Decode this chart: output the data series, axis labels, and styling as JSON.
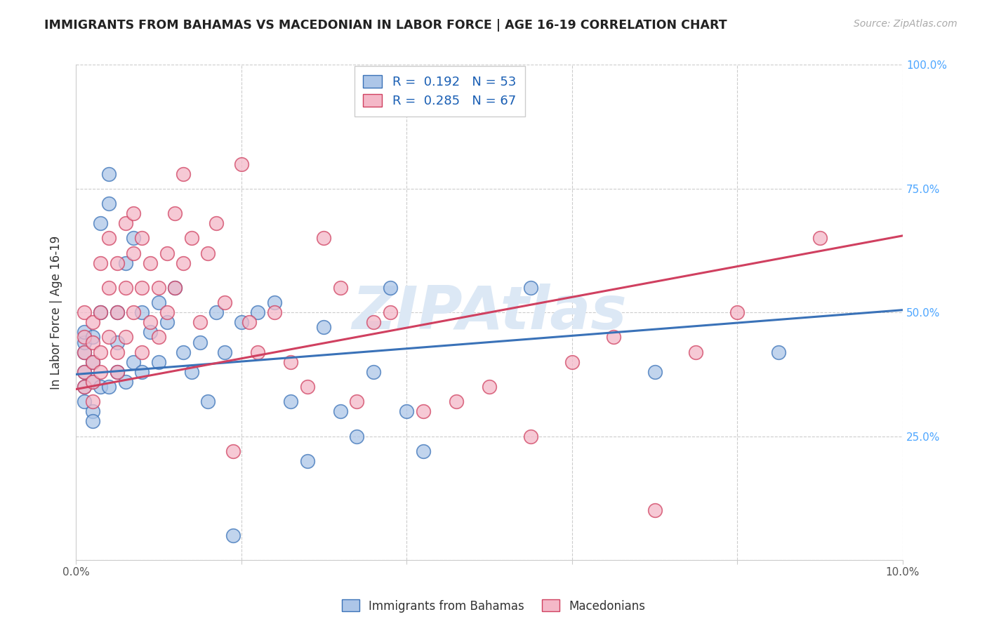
{
  "title": "IMMIGRANTS FROM BAHAMAS VS MACEDONIAN IN LABOR FORCE | AGE 16-19 CORRELATION CHART",
  "source": "Source: ZipAtlas.com",
  "ylabel": "In Labor Force | Age 16-19",
  "xmin": 0.0,
  "xmax": 0.1,
  "ymin": 0.0,
  "ymax": 1.0,
  "yticks": [
    0.0,
    0.25,
    0.5,
    0.75,
    1.0
  ],
  "ytick_labels": [
    "",
    "25.0%",
    "50.0%",
    "75.0%",
    "100.0%"
  ],
  "xticks": [
    0.0,
    0.02,
    0.04,
    0.06,
    0.08,
    0.1
  ],
  "xtick_labels": [
    "0.0%",
    "",
    "",
    "",
    "",
    "10.0%"
  ],
  "bahamas_R": 0.192,
  "bahamas_N": 53,
  "macedonian_R": 0.285,
  "macedonian_N": 67,
  "blue_color": "#adc6e8",
  "pink_color": "#f4b8c8",
  "blue_line_color": "#3a72b8",
  "pink_line_color": "#d04060",
  "title_color": "#222222",
  "right_axis_color": "#4da6ff",
  "legend_R_color": "#1a5fb4",
  "watermark": "ZIPAtlas",
  "watermark_color": "#dce8f5",
  "bahamas_x": [
    0.001,
    0.001,
    0.001,
    0.001,
    0.001,
    0.001,
    0.002,
    0.002,
    0.002,
    0.002,
    0.002,
    0.003,
    0.003,
    0.003,
    0.004,
    0.004,
    0.004,
    0.005,
    0.005,
    0.005,
    0.006,
    0.006,
    0.007,
    0.007,
    0.008,
    0.008,
    0.009,
    0.01,
    0.01,
    0.011,
    0.012,
    0.013,
    0.014,
    0.015,
    0.016,
    0.017,
    0.018,
    0.019,
    0.02,
    0.022,
    0.024,
    0.026,
    0.028,
    0.03,
    0.032,
    0.034,
    0.036,
    0.038,
    0.04,
    0.042,
    0.055,
    0.07,
    0.085
  ],
  "bahamas_y": [
    0.38,
    0.42,
    0.44,
    0.46,
    0.35,
    0.32,
    0.4,
    0.36,
    0.3,
    0.28,
    0.45,
    0.68,
    0.5,
    0.35,
    0.72,
    0.78,
    0.35,
    0.5,
    0.44,
    0.38,
    0.6,
    0.36,
    0.65,
    0.4,
    0.5,
    0.38,
    0.46,
    0.52,
    0.4,
    0.48,
    0.55,
    0.42,
    0.38,
    0.44,
    0.32,
    0.5,
    0.42,
    0.05,
    0.48,
    0.5,
    0.52,
    0.32,
    0.2,
    0.47,
    0.3,
    0.25,
    0.38,
    0.55,
    0.3,
    0.22,
    0.55,
    0.38,
    0.42
  ],
  "macedonian_x": [
    0.001,
    0.001,
    0.001,
    0.001,
    0.001,
    0.002,
    0.002,
    0.002,
    0.002,
    0.002,
    0.003,
    0.003,
    0.003,
    0.003,
    0.004,
    0.004,
    0.004,
    0.005,
    0.005,
    0.005,
    0.005,
    0.006,
    0.006,
    0.006,
    0.007,
    0.007,
    0.007,
    0.008,
    0.008,
    0.008,
    0.009,
    0.009,
    0.01,
    0.01,
    0.011,
    0.011,
    0.012,
    0.012,
    0.013,
    0.013,
    0.014,
    0.015,
    0.016,
    0.017,
    0.018,
    0.019,
    0.02,
    0.021,
    0.022,
    0.024,
    0.026,
    0.028,
    0.03,
    0.032,
    0.034,
    0.036,
    0.038,
    0.042,
    0.046,
    0.05,
    0.055,
    0.06,
    0.065,
    0.07,
    0.075,
    0.08,
    0.09
  ],
  "macedonian_y": [
    0.45,
    0.5,
    0.38,
    0.42,
    0.35,
    0.48,
    0.44,
    0.4,
    0.36,
    0.32,
    0.6,
    0.5,
    0.42,
    0.38,
    0.65,
    0.55,
    0.45,
    0.5,
    0.6,
    0.42,
    0.38,
    0.68,
    0.55,
    0.45,
    0.7,
    0.62,
    0.5,
    0.65,
    0.55,
    0.42,
    0.6,
    0.48,
    0.55,
    0.45,
    0.62,
    0.5,
    0.7,
    0.55,
    0.78,
    0.6,
    0.65,
    0.48,
    0.62,
    0.68,
    0.52,
    0.22,
    0.8,
    0.48,
    0.42,
    0.5,
    0.4,
    0.35,
    0.65,
    0.55,
    0.32,
    0.48,
    0.5,
    0.3,
    0.32,
    0.35,
    0.25,
    0.4,
    0.45,
    0.1,
    0.42,
    0.5,
    0.65
  ]
}
